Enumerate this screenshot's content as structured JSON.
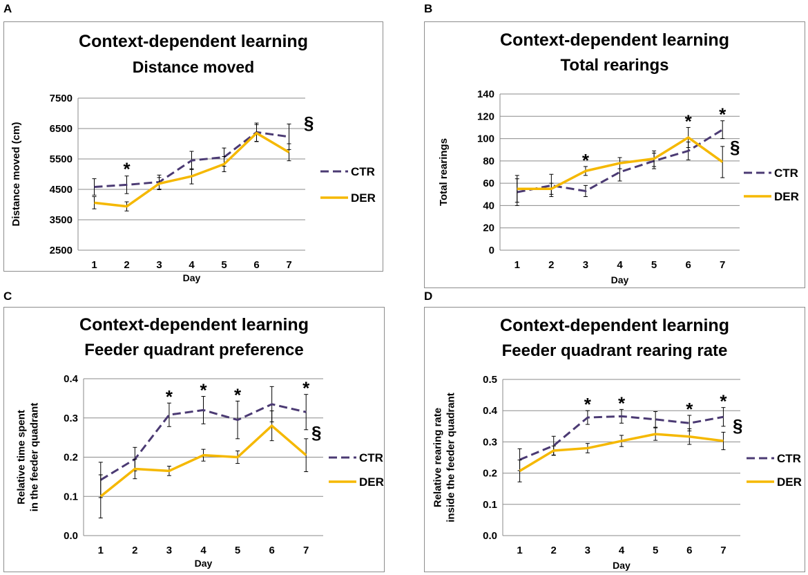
{
  "chart_data": [
    {
      "panel": "A",
      "type": "line",
      "title": [
        "Context-dependent learning",
        "Distance moved"
      ],
      "xlabel": "Day",
      "ylabel": [
        "Distance moved (cm)"
      ],
      "categories": [
        "1",
        "2",
        "3",
        "4",
        "5",
        "6",
        "7"
      ],
      "ylim": [
        2500,
        7500
      ],
      "yticks": [
        2500,
        3500,
        4500,
        5500,
        6500,
        7500
      ],
      "ytick_labels": [
        "2500",
        "3500",
        "4500",
        "5500",
        "6500",
        "7500"
      ],
      "series": [
        {
          "name": "CTR",
          "color": "#4b3a73",
          "dash": true,
          "values": [
            4580,
            4650,
            4740,
            5450,
            5560,
            6380,
            6230
          ],
          "errors": [
            270,
            290,
            230,
            300,
            300,
            300,
            420
          ]
        },
        {
          "name": "DER",
          "color": "#f5b800",
          "dash": false,
          "values": [
            4060,
            3940,
            4690,
            4930,
            5330,
            6350,
            5720
          ],
          "errors": [
            200,
            150,
            200,
            250,
            250,
            280,
            280
          ]
        }
      ],
      "stars_at": [
        "2"
      ],
      "section_mark": "§"
    },
    {
      "panel": "B",
      "type": "line",
      "title": [
        "Context-dependent learning",
        "Total rearings"
      ],
      "xlabel": "Day",
      "ylabel": [
        "Total rearings"
      ],
      "categories": [
        "1",
        "2",
        "3",
        "4",
        "5",
        "6",
        "7"
      ],
      "ylim": [
        0,
        140
      ],
      "yticks": [
        0,
        20,
        40,
        60,
        80,
        100,
        120,
        140
      ],
      "ytick_labels": [
        "0",
        "20",
        "40",
        "60",
        "80",
        "100",
        "120",
        "140"
      ],
      "series": [
        {
          "name": "CTR",
          "color": "#4b3a73",
          "dash": true,
          "values": [
            52,
            58,
            53,
            70,
            80,
            89,
            108
          ],
          "errors": [
            12,
            10,
            5,
            8,
            7,
            8,
            8
          ]
        },
        {
          "name": "DER",
          "color": "#f5b800",
          "dash": false,
          "values": [
            55,
            55,
            71,
            78,
            82,
            101,
            79
          ],
          "errors": [
            12,
            5,
            4,
            5,
            7,
            9,
            14
          ]
        }
      ],
      "stars_at": [
        "3",
        "6",
        "7"
      ],
      "section_mark": "§"
    },
    {
      "panel": "C",
      "type": "line",
      "title": [
        "Context-dependent  learning",
        "Feeder quadrant preference"
      ],
      "xlabel": "Day",
      "ylabel": [
        "Relative time spent",
        "in the feeder quadrant"
      ],
      "categories": [
        "1",
        "2",
        "3",
        "4",
        "5",
        "6",
        "7"
      ],
      "ylim": [
        0.0,
        0.4
      ],
      "yticks": [
        0.0,
        0.1,
        0.2,
        0.3,
        0.4
      ],
      "ytick_labels": [
        "0.0",
        "0.1",
        "0.2",
        "0.3",
        "0.4"
      ],
      "series": [
        {
          "name": "CTR",
          "color": "#4b3a73",
          "dash": true,
          "values": [
            0.142,
            0.195,
            0.308,
            0.32,
            0.295,
            0.335,
            0.315
          ],
          "errors": [
            0.045,
            0.03,
            0.03,
            0.035,
            0.048,
            0.045,
            0.045
          ]
        },
        {
          "name": "DER",
          "color": "#f5b800",
          "dash": false,
          "values": [
            0.1,
            0.17,
            0.165,
            0.205,
            0.2,
            0.28,
            0.205
          ],
          "errors": [
            0.055,
            0.025,
            0.012,
            0.015,
            0.016,
            0.038,
            0.042
          ]
        }
      ],
      "stars_at": [
        "3",
        "4",
        "5",
        "7"
      ],
      "section_mark": "§"
    },
    {
      "panel": "D",
      "type": "line",
      "title": [
        "Context-dependent learning",
        "Feeder quadrant rearing rate"
      ],
      "xlabel": "Day",
      "ylabel": [
        "Relative rearing rate",
        "inside the feeder quadrant"
      ],
      "categories": [
        "1",
        "2",
        "3",
        "4",
        "5",
        "6",
        "7"
      ],
      "ylim": [
        0.0,
        0.5
      ],
      "yticks": [
        0.0,
        0.1,
        0.2,
        0.3,
        0.4,
        0.5
      ],
      "ytick_labels": [
        "0.0",
        "0.1",
        "0.2",
        "0.3",
        "0.4",
        "0.5"
      ],
      "series": [
        {
          "name": "CTR",
          "color": "#4b3a73",
          "dash": true,
          "values": [
            0.243,
            0.288,
            0.378,
            0.382,
            0.372,
            0.36,
            0.38
          ],
          "errors": [
            0.035,
            0.03,
            0.022,
            0.022,
            0.025,
            0.025,
            0.03
          ]
        },
        {
          "name": "DER",
          "color": "#f5b800",
          "dash": false,
          "values": [
            0.207,
            0.272,
            0.28,
            0.303,
            0.325,
            0.317,
            0.303
          ],
          "errors": [
            0.035,
            0.015,
            0.015,
            0.018,
            0.02,
            0.025,
            0.028
          ]
        }
      ],
      "stars_at": [
        "3",
        "4",
        "6",
        "7"
      ],
      "section_mark": "§"
    }
  ]
}
